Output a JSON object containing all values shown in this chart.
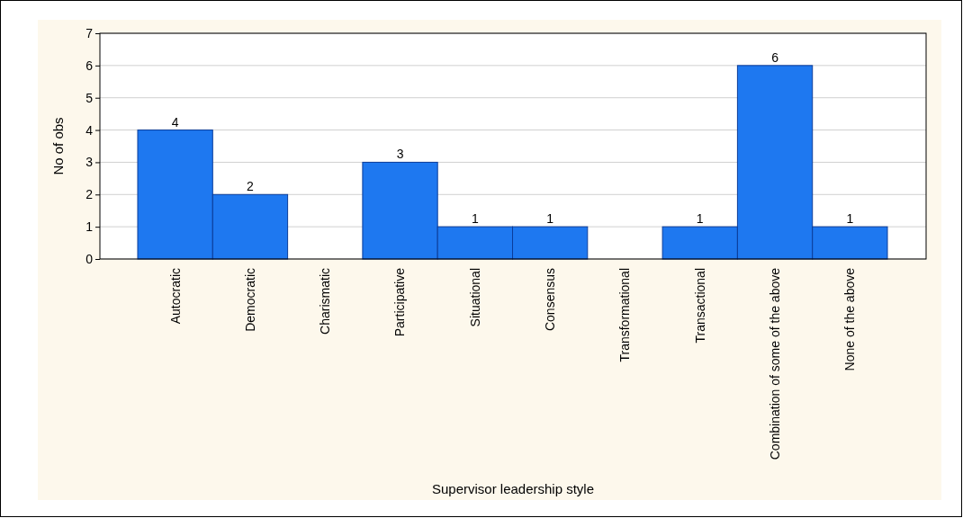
{
  "chart_data": {
    "type": "bar",
    "xlabel": "Supervisor leadership style",
    "ylabel": "No of obs",
    "categories": [
      "Autocratic",
      "Democratic",
      "Charismatic",
      "Participative",
      "Situational",
      "Consensus",
      "Transformational",
      "Transactional",
      "Combination of some of the above",
      "None of the above"
    ],
    "values": [
      4,
      2,
      0,
      3,
      1,
      1,
      0,
      1,
      6,
      1
    ],
    "value_labels": [
      "4",
      "2",
      null,
      "3",
      "1",
      "1",
      null,
      "1",
      "6",
      "1"
    ],
    "color": "#1e78f0",
    "ylim": [
      0,
      7
    ],
    "yticks": [
      0,
      1,
      2,
      3,
      4,
      5,
      6,
      7
    ],
    "grid": "y"
  }
}
